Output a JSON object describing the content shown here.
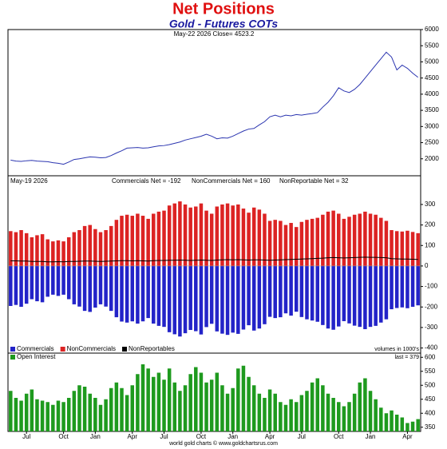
{
  "chart_data": [
    {
      "type": "line",
      "title": "Net Positions",
      "subtitle": "Gold - Futures COTs",
      "annotation": "May-22  2026   Close= 4523.2",
      "color": "#2b35b0",
      "values": [
        1960,
        1930,
        1920,
        1940,
        1950,
        1930,
        1920,
        1910,
        1880,
        1860,
        1830,
        1900,
        1980,
        2000,
        2030,
        2060,
        2050,
        2030,
        2040,
        2100,
        2180,
        2250,
        2330,
        2340,
        2350,
        2330,
        2340,
        2370,
        2400,
        2410,
        2440,
        2480,
        2520,
        2580,
        2620,
        2660,
        2700,
        2760,
        2700,
        2620,
        2650,
        2640,
        2700,
        2780,
        2860,
        2920,
        2940,
        3050,
        3150,
        3300,
        3350,
        3300,
        3350,
        3330,
        3370,
        3350,
        3380,
        3400,
        3430,
        3600,
        3750,
        3950,
        4200,
        4100,
        4050,
        4150,
        4300,
        4500,
        4700,
        4900,
        5100,
        5300,
        5150,
        4750,
        4900,
        4800,
        4650,
        4523.2
      ],
      "ylim": [
        1475,
        6000
      ],
      "yticks": [
        2000,
        2500,
        3000,
        3500,
        4000,
        4500,
        5000,
        5500,
        6000
      ],
      "grid": false
    },
    {
      "type": "bar",
      "annotation": "May-19  2026",
      "stats": [
        "Commercials Net = -192",
        "NonCommercials Net = 160",
        "NonReportable Net = 32"
      ],
      "note": "volumes in 1000's",
      "legend": "bottom-left",
      "series": [
        {
          "name": "Commercials",
          "color": "#2323c8",
          "values": [
            -195,
            -190,
            -199,
            -184,
            -162,
            -172,
            -177,
            -150,
            -140,
            -146,
            -140,
            -162,
            -187,
            -198,
            -219,
            -224,
            -203,
            -187,
            -198,
            -219,
            -250,
            -271,
            -276,
            -270,
            -281,
            -270,
            -254,
            -281,
            -292,
            -297,
            -323,
            -333,
            -344,
            -328,
            -312,
            -318,
            -334,
            -298,
            -282,
            -319,
            -330,
            -336,
            -325,
            -331,
            -310,
            -289,
            -315,
            -305,
            -284,
            -248,
            -254,
            -250,
            -231,
            -242,
            -223,
            -249,
            -260,
            -266,
            -272,
            -288,
            -305,
            -311,
            -295,
            -269,
            -280,
            -291,
            -297,
            -308,
            -297,
            -292,
            -276,
            -260,
            -211,
            -205,
            -202,
            -206,
            -199,
            -192
          ]
        },
        {
          "name": "NonCommercials",
          "color": "#dc2323",
          "values": [
            170,
            165,
            175,
            160,
            140,
            150,
            155,
            130,
            120,
            125,
            120,
            140,
            165,
            175,
            195,
            200,
            180,
            165,
            175,
            195,
            225,
            245,
            250,
            245,
            255,
            245,
            230,
            255,
            265,
            270,
            295,
            305,
            315,
            300,
            285,
            290,
            305,
            270,
            255,
            290,
            300,
            305,
            295,
            300,
            280,
            260,
            285,
            275,
            255,
            220,
            225,
            220,
            200,
            210,
            190,
            215,
            225,
            230,
            235,
            250,
            265,
            270,
            255,
            230,
            240,
            250,
            255,
            265,
            255,
            250,
            235,
            220,
            175,
            170,
            168,
            172,
            166,
            160
          ]
        },
        {
          "name": "NonReportables",
          "color": "#000000",
          "style": "line",
          "values": [
            25,
            25,
            24,
            24,
            22,
            22,
            22,
            20,
            20,
            21,
            20,
            22,
            22,
            23,
            24,
            24,
            23,
            22,
            23,
            24,
            25,
            26,
            26,
            25,
            26,
            25,
            24,
            26,
            27,
            27,
            28,
            28,
            29,
            28,
            27,
            28,
            29,
            28,
            27,
            29,
            30,
            31,
            30,
            31,
            30,
            29,
            30,
            30,
            29,
            28,
            29,
            30,
            31,
            32,
            33,
            34,
            35,
            36,
            37,
            38,
            40,
            41,
            40,
            39,
            40,
            41,
            42,
            43,
            42,
            42,
            41,
            40,
            36,
            35,
            34,
            34,
            33,
            32
          ]
        }
      ],
      "ylim": [
        -425,
        440
      ],
      "yticks": [
        300,
        200,
        100,
        0,
        -100,
        -200,
        -300,
        -400
      ],
      "grid": false
    },
    {
      "type": "bar",
      "annotation": "last = 379",
      "footer": "world gold charts © www.goldchartsrus.com",
      "legend": "top-left",
      "categories": [
        null,
        null,
        null,
        "Jul",
        null,
        null,
        null,
        null,
        null,
        null,
        "Oct",
        null,
        null,
        null,
        null,
        null,
        "Jan",
        null,
        null,
        null,
        null,
        null,
        null,
        "Apr",
        null,
        null,
        null,
        null,
        null,
        "Jul",
        null,
        null,
        null,
        null,
        null,
        null,
        "Oct",
        null,
        null,
        null,
        null,
        null,
        "Jan",
        null,
        null,
        null,
        null,
        null,
        null,
        "Apr",
        null,
        null,
        null,
        null,
        null,
        "Jul",
        null,
        null,
        null,
        null,
        null,
        null,
        "Oct",
        null,
        null,
        null,
        null,
        null,
        "Jan",
        null,
        null,
        null,
        null,
        null,
        null,
        "Apr",
        null,
        null
      ],
      "series": [
        {
          "name": "Open Interest",
          "color": "#1e9a1e",
          "values": [
            480,
            455,
            445,
            470,
            485,
            450,
            445,
            440,
            430,
            445,
            440,
            455,
            480,
            500,
            495,
            470,
            455,
            430,
            450,
            490,
            510,
            490,
            465,
            500,
            540,
            575,
            560,
            530,
            545,
            520,
            560,
            510,
            480,
            500,
            540,
            565,
            545,
            510,
            520,
            545,
            500,
            470,
            490,
            560,
            570,
            530,
            500,
            470,
            455,
            485,
            470,
            440,
            430,
            450,
            440,
            465,
            480,
            510,
            525,
            500,
            470,
            455,
            440,
            425,
            440,
            470,
            510,
            525,
            480,
            450,
            420,
            400,
            410,
            395,
            385,
            365,
            370,
            379
          ]
        }
      ],
      "ylim": [
        335,
        615
      ],
      "yticks": [
        350,
        400,
        450,
        500,
        550,
        600
      ],
      "grid": false
    }
  ]
}
